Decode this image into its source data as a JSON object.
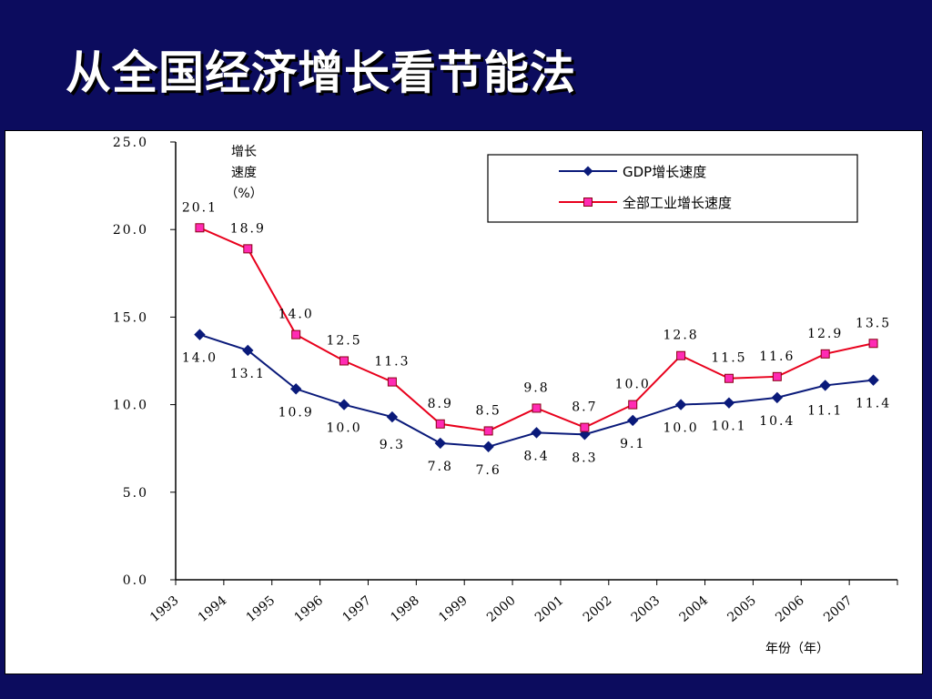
{
  "slide": {
    "title": "从全国经济增长看节能法"
  },
  "colors": {
    "background": "#0c0c5e",
    "gdp_series": "#0a1a7a",
    "industry_series": "#e8001c",
    "industry_marker_fill": "#ff2bb4"
  },
  "chart_data": {
    "type": "line",
    "ylabel": [
      "增长",
      "速度",
      "（%）"
    ],
    "xlabel": "年份（年）",
    "ylim": [
      0,
      25
    ],
    "y_ticks": [
      "0.0",
      "5.0",
      "10.0",
      "15.0",
      "20.0",
      "25.0"
    ],
    "categories": [
      "1993",
      "1994",
      "1995",
      "1996",
      "1997",
      "1998",
      "1999",
      "2000",
      "2001",
      "2002",
      "2003",
      "2004",
      "2005",
      "2006",
      "2007"
    ],
    "legend_position": "top-right",
    "series": [
      {
        "name": "GDP增长速度",
        "marker": "diamond",
        "values": [
          14.0,
          13.1,
          10.9,
          10.0,
          9.3,
          7.8,
          7.6,
          8.4,
          8.3,
          9.1,
          10.0,
          10.1,
          10.4,
          11.1,
          11.4
        ],
        "labels": [
          "14.0",
          "13.1",
          "10.9",
          "10.0",
          "9.3",
          "7.8",
          "7.6",
          "8.4",
          "8.3",
          "9.1",
          "10.0",
          "10.1",
          "10.4",
          "11.1",
          "11.4"
        ]
      },
      {
        "name": "全部工业增长速度",
        "marker": "square",
        "values": [
          20.1,
          18.9,
          14.0,
          12.5,
          11.3,
          8.9,
          8.5,
          9.8,
          8.7,
          10.0,
          12.8,
          11.5,
          11.6,
          12.9,
          13.5
        ],
        "labels": [
          "20.1",
          "18.9",
          "14.0",
          "12.5",
          "11.3",
          "8.9",
          "8.5",
          "9.8",
          "8.7",
          "10.0",
          "12.8",
          "11.5",
          "11.6",
          "12.9",
          "13.5"
        ]
      }
    ]
  }
}
